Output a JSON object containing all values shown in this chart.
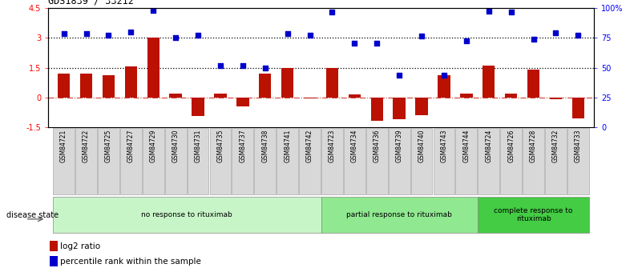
{
  "title": "GDS1839 / 33212",
  "samples": [
    "GSM84721",
    "GSM84722",
    "GSM84725",
    "GSM84727",
    "GSM84729",
    "GSM84730",
    "GSM84731",
    "GSM84735",
    "GSM84737",
    "GSM84738",
    "GSM84741",
    "GSM84742",
    "GSM84723",
    "GSM84734",
    "GSM84736",
    "GSM84739",
    "GSM84740",
    "GSM84743",
    "GSM84744",
    "GSM84724",
    "GSM84726",
    "GSM84728",
    "GSM84732",
    "GSM84733"
  ],
  "log2_ratio": [
    1.2,
    1.2,
    1.1,
    1.55,
    3.0,
    0.2,
    -0.95,
    0.18,
    -0.45,
    1.2,
    1.5,
    -0.05,
    1.5,
    0.15,
    -1.2,
    -1.1,
    -0.9,
    1.1,
    0.2,
    1.6,
    0.2,
    1.4,
    -0.08,
    -1.05
  ],
  "percentile_left": [
    3.2,
    3.2,
    3.15,
    3.3,
    4.4,
    3.0,
    3.15,
    1.6,
    1.6,
    1.5,
    3.2,
    3.15,
    4.3,
    2.75,
    2.75,
    1.1,
    3.1,
    1.1,
    2.85,
    4.35,
    4.3,
    2.95,
    3.25,
    3.15
  ],
  "groups": [
    {
      "label": "no response to rituximab",
      "start": 0,
      "end": 12,
      "color": "#c8f5c8"
    },
    {
      "label": "partial response to rituximab",
      "start": 12,
      "end": 19,
      "color": "#90e890"
    },
    {
      "label": "complete response to\nrituximab",
      "start": 19,
      "end": 24,
      "color": "#44cc44"
    }
  ],
  "ylim_left": [
    -1.5,
    4.5
  ],
  "yticks_left": [
    -1.5,
    0.0,
    1.5,
    3.0,
    4.5
  ],
  "ytick_labels_left": [
    "-1.5",
    "0",
    "1.5",
    "3",
    "4.5"
  ],
  "ytick_labels_right": [
    "0",
    "25",
    "50",
    "75",
    "100%"
  ],
  "bar_color": "#bb1100",
  "dot_color": "#0000cc",
  "bar_width": 0.55,
  "dot_size": 16
}
